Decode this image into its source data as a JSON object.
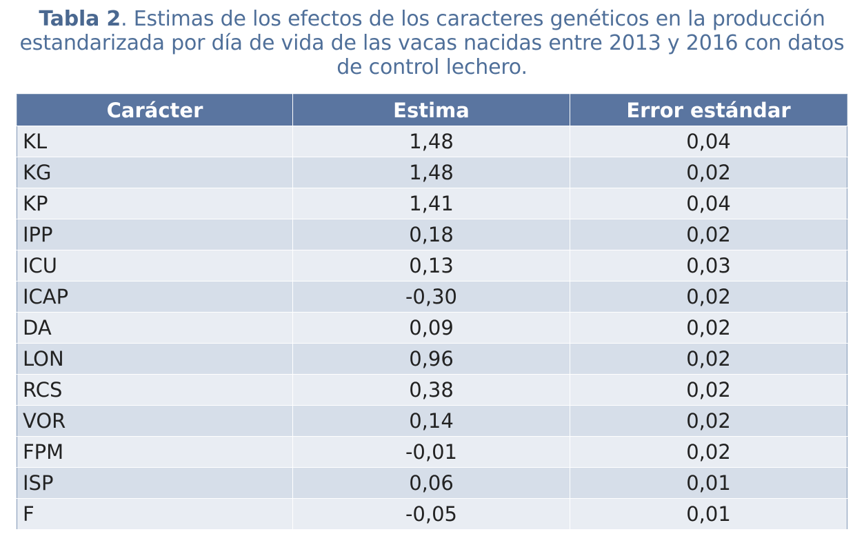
{
  "caption": {
    "label": "Tabla 2",
    "text": ". Estimas de los efectos de los caracteres genéticos en la producción estandarizada por día de vida de las vacas nacidas entre 2013 y 2016 con datos de control lechero."
  },
  "table": {
    "headers": [
      "Carácter",
      "Estima",
      "Error estándar"
    ],
    "rows": [
      {
        "caracter": "KL",
        "estima": "1,48",
        "error": "0,04"
      },
      {
        "caracter": "KG",
        "estima": "1,48",
        "error": "0,02"
      },
      {
        "caracter": "KP",
        "estima": "1,41",
        "error": "0,04"
      },
      {
        "caracter": "IPP",
        "estima": "0,18",
        "error": "0,02"
      },
      {
        "caracter": "ICU",
        "estima": "0,13",
        "error": "0,03"
      },
      {
        "caracter": "ICAP",
        "estima": "-0,30",
        "error": "0,02"
      },
      {
        "caracter": "DA",
        "estima": "0,09",
        "error": "0,02"
      },
      {
        "caracter": "LON",
        "estima": "0,96",
        "error": "0,02"
      },
      {
        "caracter": "RCS",
        "estima": "0,38",
        "error": "0,02"
      },
      {
        "caracter": "VOR",
        "estima": "0,14",
        "error": "0,02"
      },
      {
        "caracter": "FPM",
        "estima": "-0,01",
        "error": "0,02"
      },
      {
        "caracter": "ISP",
        "estima": "0,06",
        "error": "0,01"
      },
      {
        "caracter": "F",
        "estima": "-0,05",
        "error": "0,01"
      }
    ]
  },
  "colors": {
    "header_bg": "#5a75a0",
    "row_odd": "#e9edf3",
    "row_even": "#d6dee9",
    "caption_text": "#4f6f99"
  }
}
